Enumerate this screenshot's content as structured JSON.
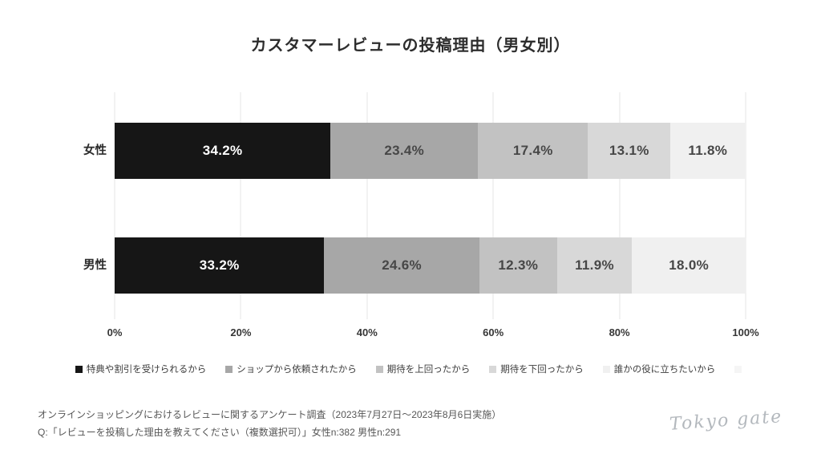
{
  "title": "カスタマーレビューの投稿理由（男女別）",
  "chart_data": {
    "type": "bar",
    "stacked": true,
    "orientation": "horizontal",
    "title": "カスタマーレビューの投稿理由（男女別）",
    "categories": [
      "女性",
      "男性"
    ],
    "series": [
      {
        "name": "特典や割引を受けられるから",
        "color": "#161616",
        "label_color": "#ffffff",
        "values": [
          34.2,
          33.2
        ]
      },
      {
        "name": "ショップから依頼されたから",
        "color": "#a7a7a7",
        "label_color": "#474747",
        "values": [
          23.4,
          24.6
        ]
      },
      {
        "name": "期待を上回ったから",
        "color": "#c2c2c2",
        "label_color": "#474747",
        "values": [
          17.4,
          12.3
        ]
      },
      {
        "name": "期待を下回ったから",
        "color": "#d8d8d8",
        "label_color": "#474747",
        "values": [
          13.1,
          11.9
        ]
      },
      {
        "name": "誰かの役に立ちたいから",
        "color": "#f0f0f0",
        "label_color": "#474747",
        "values": [
          11.8,
          18.0
        ]
      }
    ],
    "xlim": [
      0,
      100
    ],
    "x_ticks": [
      "0%",
      "20%",
      "40%",
      "60%",
      "80%",
      "100%"
    ],
    "grid": true,
    "legend_position": "bottom"
  },
  "legend": {
    "items": [
      {
        "label": "特典や割引を受けられるから",
        "color": "#161616"
      },
      {
        "label": "ショップから依頼されたから",
        "color": "#a7a7a7"
      },
      {
        "label": "期待を上回ったから",
        "color": "#c2c2c2"
      },
      {
        "label": "期待を下回ったから",
        "color": "#d8d8d8"
      },
      {
        "label": "誰かの役に立ちたいから",
        "color": "#f0f0f0"
      },
      {
        "label": "",
        "color": "#f5f5f5"
      }
    ]
  },
  "source": {
    "line1": "オンラインショッピングにおけるレビューに関するアンケート調査（2023年7月27日～2023年8月6日実施）",
    "line2": "Q:「レビューを投稿した理由を教えてください（複数選択可）」女性n:382 男性n:291"
  },
  "branding": {
    "logo_text": "Tokyo gate"
  }
}
